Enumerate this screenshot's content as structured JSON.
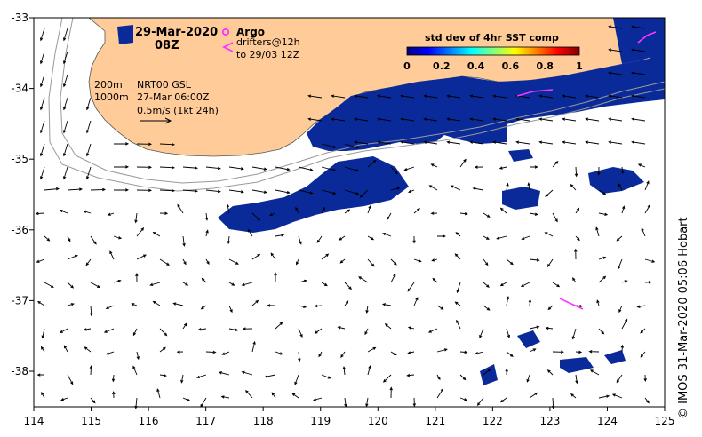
{
  "header": {
    "date": "29-Mar-2020",
    "time": "08Z"
  },
  "legend": {
    "argo_label": "Argo",
    "drifters_line1": "drifters@12h",
    "drifters_line2": "to 29/03 12Z",
    "argo_color": "#ff33ff",
    "drifter_color": "#ff33ff"
  },
  "colorbar": {
    "title": "std dev of 4hr SST comp",
    "ticks": [
      "0",
      "0.2",
      "0.4",
      "0.6",
      "0.8",
      "1"
    ],
    "colors": [
      "#00007f",
      "#0000ff",
      "#0080ff",
      "#00ffff",
      "#80ff80",
      "#ffff00",
      "#ff8000",
      "#ff0000",
      "#800000"
    ]
  },
  "annotations": {
    "isobath_200": "200m",
    "isobath_1000": "1000m",
    "product": "NRT00 GSL",
    "product_time": "27-Mar 06:00Z",
    "scale": "0.5m/s (1kt 24h)"
  },
  "axes": {
    "x_ticks": [
      "114",
      "115",
      "116",
      "117",
      "118",
      "119",
      "120",
      "121",
      "122",
      "123",
      "124",
      "125"
    ],
    "y_ticks": [
      "-33",
      "-34",
      "-35",
      "-36",
      "-37",
      "-38"
    ]
  },
  "credit": "© IMOS 31-Mar-2020 05:06 Hobart",
  "colors": {
    "land": "#ffcc99",
    "sst_patch": "#0a2a9a",
    "ocean": "#ffffff"
  }
}
